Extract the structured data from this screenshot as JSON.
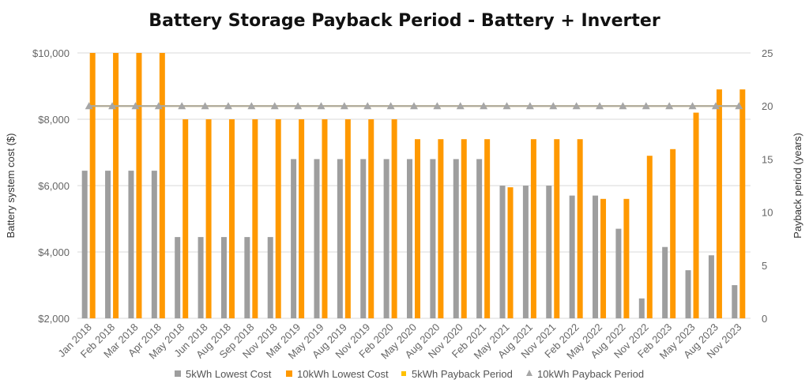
{
  "chart_data": {
    "type": "bar",
    "title": "Battery Storage Payback Period - Battery + Inverter",
    "xlabel": "",
    "ylabel": "Battery system cost ($)",
    "y2label": "Payback period (years)",
    "ylim": [
      2000,
      10000
    ],
    "y2lim": [
      0,
      25
    ],
    "yticks": [
      "$2,000",
      "$4,000",
      "$6,000",
      "$8,000",
      "$10,000"
    ],
    "y2ticks": [
      "0",
      "5",
      "10",
      "15",
      "20",
      "25"
    ],
    "grid": true,
    "legend_position": "bottom",
    "categories": [
      "Jan 2018",
      "Feb 2018",
      "Mar 2018",
      "Apr 2018",
      "May 2018",
      "Jun 2018",
      "Aug 2018",
      "Sep 2018",
      "Nov 2018",
      "Mar 2019",
      "May 2019",
      "Aug 2019",
      "Nov 2019",
      "Feb 2020",
      "May 2020",
      "Aug 2020",
      "Nov 2020",
      "Feb 2021",
      "May 2021",
      "Aug 2021",
      "Nov 2021",
      "Feb 2022",
      "May 2022",
      "Aug 2022",
      "Nov 2022",
      "Feb 2023",
      "May 2023",
      "Aug 2023",
      "Nov 2023"
    ],
    "series": [
      {
        "name": "5kWh Lowest Cost",
        "type": "bar",
        "axis": "left",
        "color": "#9e9e9e",
        "values": [
          6450,
          6450,
          6450,
          6450,
          4450,
          4450,
          4450,
          4450,
          4450,
          6800,
          6800,
          6800,
          6800,
          6800,
          6800,
          6800,
          6800,
          6800,
          6000,
          6000,
          6000,
          5700,
          5700,
          4700,
          2600,
          4150,
          3450,
          3900,
          3000
        ]
      },
      {
        "name": "10kWh Lowest Cost",
        "type": "bar",
        "axis": "left",
        "color": "#ff9900",
        "values": [
          10000,
          10000,
          10000,
          10000,
          8000,
          8000,
          8000,
          8000,
          8000,
          8000,
          8000,
          8000,
          8000,
          8000,
          7400,
          7400,
          7400,
          7400,
          5950,
          7400,
          7400,
          7400,
          5600,
          5600,
          6900,
          7100,
          8200,
          8900,
          8900
        ]
      },
      {
        "name": "5kWh Payback Period",
        "type": "line",
        "axis": "right",
        "color": "#ffc000",
        "values": [
          20,
          20,
          20,
          20,
          20,
          20,
          20,
          20,
          20,
          20,
          20,
          20,
          20,
          20,
          20,
          20,
          20,
          20,
          20,
          20,
          20,
          20,
          20,
          20,
          20,
          20,
          20,
          20,
          20
        ]
      },
      {
        "name": "10kWh Payback Period",
        "type": "line",
        "axis": "right",
        "color": "#a6a6a6",
        "values": [
          20,
          20,
          20,
          20,
          20,
          20,
          20,
          20,
          20,
          20,
          20,
          20,
          20,
          20,
          20,
          20,
          20,
          20,
          20,
          20,
          20,
          20,
          20,
          20,
          20,
          20,
          20,
          20,
          20
        ]
      }
    ]
  }
}
